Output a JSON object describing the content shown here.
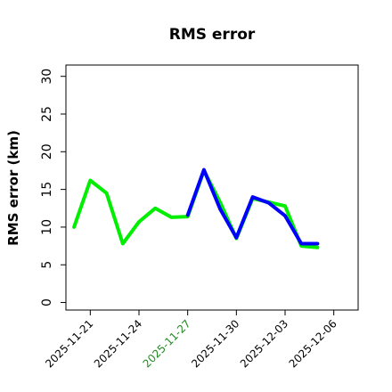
{
  "chart_data": {
    "type": "line",
    "title": "RMS error",
    "xlabel": "",
    "ylabel": "RMS error (km)",
    "ylim": [
      -1,
      31.5
    ],
    "xlim": [
      "2025-11-19T12:00",
      "2025-12-07T12:00"
    ],
    "yticks": [
      0,
      5,
      10,
      15,
      20,
      25,
      30
    ],
    "xticks": [
      "2025-11-21",
      "2025-11-24",
      "2025-11-27",
      "2025-11-30",
      "2025-12-03",
      "2025-12-06"
    ],
    "highlighted_xtick": "2025-11-27",
    "grid": false,
    "series": [
      {
        "color": "#00ee00",
        "x": [
          "2025-11-20",
          "2025-11-21",
          "2025-11-22",
          "2025-11-23",
          "2025-11-24",
          "2025-11-25",
          "2025-11-26",
          "2025-11-27",
          "2025-11-28",
          "2025-11-29",
          "2025-11-30",
          "2025-12-01",
          "2025-12-02",
          "2025-12-03",
          "2025-12-04",
          "2025-12-05"
        ],
        "values": [
          10.0,
          16.2,
          14.5,
          7.8,
          10.7,
          12.5,
          11.3,
          11.4,
          17.5,
          13.3,
          8.5,
          13.8,
          13.3,
          12.8,
          7.5,
          7.3
        ]
      },
      {
        "color": "#0000ff",
        "x": [
          "2025-11-27",
          "2025-11-28",
          "2025-11-29",
          "2025-11-30",
          "2025-12-01",
          "2025-12-02",
          "2025-12-03",
          "2025-12-04",
          "2025-12-05"
        ],
        "values": [
          11.6,
          17.6,
          12.4,
          8.6,
          14.0,
          13.2,
          11.5,
          7.8,
          7.8
        ]
      }
    ],
    "colors": {
      "highlight_tick": "#228b22",
      "axis": "#000000"
    }
  }
}
